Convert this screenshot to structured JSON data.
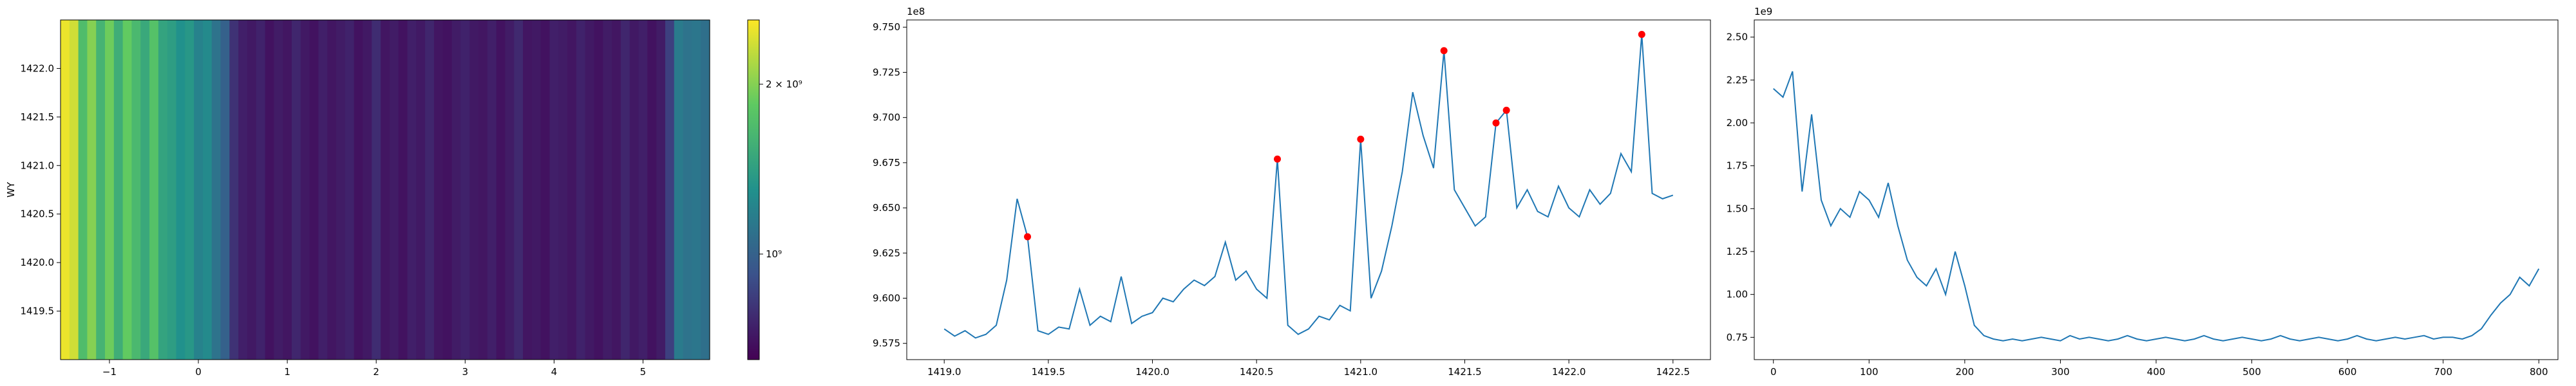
{
  "chart_data": [
    {
      "type": "heatmap",
      "ylabel": "WY",
      "xlim": [
        -1.55,
        5.75
      ],
      "ylim": [
        1419.0,
        1422.5
      ],
      "xticks": [
        {
          "value": -1,
          "label": "−1"
        },
        0,
        1,
        2,
        3,
        4,
        5
      ],
      "yticks": [
        1419.5,
        {
          "value": 1420,
          "label": "1420.0"
        },
        1420.5,
        {
          "value": 1421,
          "label": "1421.0"
        },
        1421.5,
        {
          "value": 1422,
          "label": "1422.0"
        }
      ],
      "values": [
        2500000000,
        2350000000,
        1700000000,
        2000000000,
        1600000000,
        1900000000,
        1550000000,
        1850000000,
        1650000000,
        1500000000,
        1750000000,
        1450000000,
        1400000000,
        1300000000,
        1350000000,
        1200000000,
        1250000000,
        1100000000,
        1000000000,
        800000000,
        740000000,
        720000000,
        750000000,
        700000000,
        730000000,
        710000000,
        760000000,
        720000000,
        700000000,
        740000000,
        710000000,
        730000000,
        750000000,
        700000000,
        720000000,
        780000000,
        710000000,
        730000000,
        700000000,
        740000000,
        720000000,
        760000000,
        710000000,
        700000000,
        730000000,
        750000000,
        720000000,
        710000000,
        740000000,
        700000000,
        730000000,
        770000000,
        710000000,
        720000000,
        700000000,
        740000000,
        730000000,
        710000000,
        750000000,
        720000000,
        700000000,
        730000000,
        710000000,
        760000000,
        720000000,
        740000000,
        700000000,
        730000000,
        850000000,
        1150000000,
        1100000000,
        1120000000,
        1080000000
      ],
      "colormap": "viridis",
      "log": true,
      "clim": [
        650000000,
        2600000000
      ],
      "cticks": [
        {
          "value": 1000000000,
          "label": "10⁹"
        },
        {
          "value": 2000000000,
          "label": "2 × 10⁹"
        }
      ]
    },
    {
      "type": "line",
      "offset_text": "1e8",
      "xlim": [
        1418.82,
        1422.68
      ],
      "ylim": [
        956600000,
        975400000
      ],
      "xticks": [
        {
          "value": 1419,
          "label": "1419.0"
        },
        1419.5,
        {
          "value": 1420,
          "label": "1420.0"
        },
        1420.5,
        {
          "value": 1421,
          "label": "1421.0"
        },
        1421.5,
        {
          "value": 1422,
          "label": "1422.0"
        },
        1422.5
      ],
      "yticks": [
        {
          "value": 957500000,
          "label": "9.575"
        },
        {
          "value": 960000000,
          "label": "9.600"
        },
        {
          "value": 962500000,
          "label": "9.625"
        },
        {
          "value": 965000000,
          "label": "9.650"
        },
        {
          "value": 967500000,
          "label": "9.675"
        },
        {
          "value": 970000000,
          "label": "9.700"
        },
        {
          "value": 972500000,
          "label": "9.725"
        },
        {
          "value": 975000000,
          "label": "9.750"
        }
      ],
      "series": [
        {
          "type": "line",
          "color": "#1f77b4",
          "x": [
            1419.0,
            1419.05,
            1419.1,
            1419.15,
            1419.2,
            1419.25,
            1419.3,
            1419.35,
            1419.4,
            1419.45,
            1419.5,
            1419.55,
            1419.6,
            1419.65,
            1419.7,
            1419.75,
            1419.8,
            1419.85,
            1419.9,
            1419.95,
            1420.0,
            1420.05,
            1420.1,
            1420.15,
            1420.2,
            1420.25,
            1420.3,
            1420.35,
            1420.4,
            1420.45,
            1420.5,
            1420.55,
            1420.6,
            1420.65,
            1420.7,
            1420.75,
            1420.8,
            1420.85,
            1420.9,
            1420.95,
            1421.0,
            1421.05,
            1421.1,
            1421.15,
            1421.2,
            1421.25,
            1421.3,
            1421.35,
            1421.4,
            1421.45,
            1421.5,
            1421.55,
            1421.6,
            1421.65,
            1421.7,
            1421.75,
            1421.8,
            1421.85,
            1421.9,
            1421.95,
            1422.0,
            1422.05,
            1422.1,
            1422.15,
            1422.2,
            1422.25,
            1422.3,
            1422.35,
            1422.4,
            1422.45,
            1422.5
          ],
          "values": [
            958300000,
            957900000,
            958200000,
            957800000,
            958000000,
            958500000,
            961000000,
            965500000,
            963400000,
            958200000,
            958000000,
            958400000,
            958300000,
            960500000,
            958500000,
            959000000,
            958700000,
            961200000,
            958600000,
            959000000,
            959200000,
            960000000,
            959800000,
            960500000,
            961000000,
            960700000,
            961200000,
            963100000,
            961000000,
            961500000,
            960500000,
            960000000,
            967700000,
            958500000,
            958000000,
            958300000,
            959000000,
            958800000,
            959600000,
            959300000,
            968800000,
            960000000,
            961500000,
            964000000,
            967000000,
            971400000,
            969000000,
            967200000,
            973700000,
            966000000,
            965000000,
            964000000,
            964500000,
            969700000,
            970400000,
            965000000,
            966000000,
            964800000,
            964500000,
            966200000,
            965000000,
            964500000,
            966000000,
            965200000,
            965800000,
            968000000,
            967000000,
            974600000,
            965800000,
            965500000,
            965700000
          ]
        },
        {
          "type": "scatter",
          "color": "#ff0000",
          "x": [
            1419.4,
            1420.6,
            1421.0,
            1421.4,
            1421.65,
            1421.7,
            1422.35
          ],
          "values": [
            963400000,
            967700000,
            968800000,
            973700000,
            969700000,
            970400000,
            974600000
          ]
        }
      ]
    },
    {
      "type": "line",
      "offset_text": "1e9",
      "xlim": [
        -20,
        820
      ],
      "ylim": [
        620000000,
        2600000000
      ],
      "xticks": [
        0,
        100,
        200,
        300,
        400,
        500,
        600,
        700,
        800
      ],
      "yticks": [
        {
          "value": 750000000,
          "label": "0.75"
        },
        {
          "value": 1000000000,
          "label": "1.00"
        },
        {
          "value": 1250000000,
          "label": "1.25"
        },
        {
          "value": 1500000000,
          "label": "1.50"
        },
        {
          "value": 1750000000,
          "label": "1.75"
        },
        {
          "value": 2000000000,
          "label": "2.00"
        },
        {
          "value": 2250000000,
          "label": "2.25"
        },
        {
          "value": 2500000000,
          "label": "2.50"
        }
      ],
      "series": [
        {
          "type": "line",
          "color": "#1f77b4",
          "x": [
            0,
            10,
            20,
            30,
            40,
            50,
            60,
            70,
            80,
            90,
            100,
            110,
            120,
            130,
            140,
            150,
            160,
            170,
            180,
            190,
            200,
            210,
            220,
            230,
            240,
            250,
            260,
            270,
            280,
            290,
            300,
            310,
            320,
            330,
            340,
            350,
            360,
            370,
            380,
            390,
            400,
            410,
            420,
            430,
            440,
            450,
            460,
            470,
            480,
            490,
            500,
            510,
            520,
            530,
            540,
            550,
            560,
            570,
            580,
            590,
            600,
            610,
            620,
            630,
            640,
            650,
            660,
            670,
            680,
            690,
            700,
            710,
            720,
            730,
            740,
            750,
            760,
            770,
            780,
            790,
            800
          ],
          "values": [
            2200000000,
            2150000000,
            2300000000,
            1600000000,
            2050000000,
            1550000000,
            1400000000,
            1500000000,
            1450000000,
            1600000000,
            1550000000,
            1450000000,
            1650000000,
            1400000000,
            1200000000,
            1100000000,
            1050000000,
            1150000000,
            1000000000,
            1250000000,
            1050000000,
            820000000,
            760000000,
            740000000,
            730000000,
            740000000,
            730000000,
            740000000,
            750000000,
            740000000,
            730000000,
            760000000,
            740000000,
            750000000,
            740000000,
            730000000,
            740000000,
            760000000,
            740000000,
            730000000,
            740000000,
            750000000,
            740000000,
            730000000,
            740000000,
            760000000,
            740000000,
            730000000,
            740000000,
            750000000,
            740000000,
            730000000,
            740000000,
            760000000,
            740000000,
            730000000,
            740000000,
            750000000,
            740000000,
            730000000,
            740000000,
            760000000,
            740000000,
            730000000,
            740000000,
            750000000,
            740000000,
            750000000,
            760000000,
            740000000,
            750000000,
            750000000,
            740000000,
            760000000,
            800000000,
            880000000,
            950000000,
            1000000000,
            1100000000,
            1050000000,
            1150000000
          ]
        }
      ]
    }
  ]
}
